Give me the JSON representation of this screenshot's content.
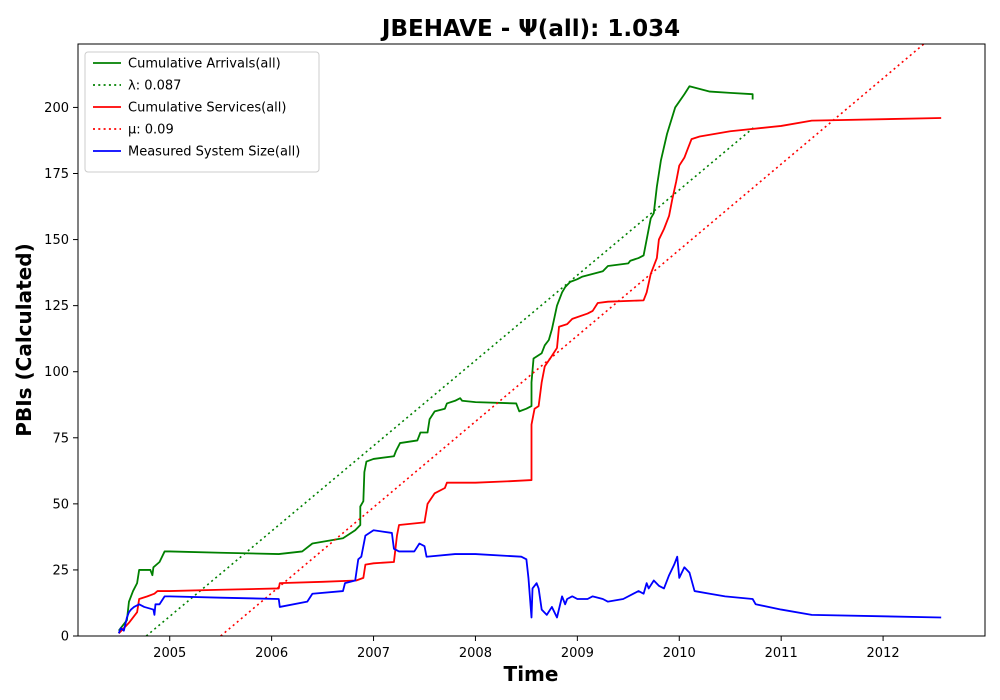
{
  "chart_data": {
    "type": "line",
    "title": "JBEHAVE -  Ψ(all): 1.034",
    "xlabel": "Time",
    "ylabel": "PBIs (Calculated)",
    "xlim": [
      2004.1,
      2013.0
    ],
    "ylim": [
      0,
      224
    ],
    "x_ticks": [
      2005,
      2006,
      2007,
      2008,
      2009,
      2010,
      2011,
      2012
    ],
    "y_ticks": [
      0,
      25,
      50,
      75,
      100,
      125,
      150,
      175,
      200
    ],
    "grid": false,
    "legend_position": "upper-left",
    "series": [
      {
        "name": "Cumulative Arrivals(all)",
        "color": "#008000",
        "style": "solid",
        "points": [
          [
            2004.5,
            2
          ],
          [
            2004.58,
            6
          ],
          [
            2004.6,
            13
          ],
          [
            2004.64,
            17
          ],
          [
            2004.68,
            20
          ],
          [
            2004.7,
            25
          ],
          [
            2004.81,
            25
          ],
          [
            2004.83,
            23
          ],
          [
            2004.84,
            26
          ],
          [
            2004.9,
            28
          ],
          [
            2004.95,
            32
          ],
          [
            2005.0,
            32
          ],
          [
            2005.5,
            31.5
          ],
          [
            2006.07,
            31
          ],
          [
            2006.3,
            32
          ],
          [
            2006.4,
            35
          ],
          [
            2006.7,
            37
          ],
          [
            2006.82,
            40
          ],
          [
            2006.87,
            42
          ],
          [
            2006.87,
            49
          ],
          [
            2006.9,
            51
          ],
          [
            2006.91,
            62
          ],
          [
            2006.93,
            66
          ],
          [
            2007.0,
            67
          ],
          [
            2007.2,
            68
          ],
          [
            2007.22,
            70
          ],
          [
            2007.26,
            73
          ],
          [
            2007.43,
            74
          ],
          [
            2007.46,
            77
          ],
          [
            2007.53,
            77
          ],
          [
            2007.55,
            82
          ],
          [
            2007.6,
            85
          ],
          [
            2007.7,
            86
          ],
          [
            2007.72,
            88
          ],
          [
            2007.8,
            89
          ],
          [
            2007.85,
            90
          ],
          [
            2007.87,
            89
          ],
          [
            2008.0,
            88.5
          ],
          [
            2008.4,
            88
          ],
          [
            2008.43,
            85
          ],
          [
            2008.5,
            86
          ],
          [
            2008.55,
            87
          ],
          [
            2008.55,
            96
          ],
          [
            2008.57,
            105
          ],
          [
            2008.65,
            107
          ],
          [
            2008.68,
            110
          ],
          [
            2008.72,
            112
          ],
          [
            2008.75,
            116
          ],
          [
            2008.8,
            125
          ],
          [
            2008.85,
            130
          ],
          [
            2008.88,
            132
          ],
          [
            2008.93,
            134
          ],
          [
            2009.0,
            135
          ],
          [
            2009.05,
            136
          ],
          [
            2009.25,
            138
          ],
          [
            2009.3,
            140
          ],
          [
            2009.5,
            141
          ],
          [
            2009.52,
            142
          ],
          [
            2009.6,
            143
          ],
          [
            2009.65,
            144
          ],
          [
            2009.68,
            150
          ],
          [
            2009.72,
            158
          ],
          [
            2009.75,
            160
          ],
          [
            2009.78,
            170
          ],
          [
            2009.82,
            180
          ],
          [
            2009.88,
            190
          ],
          [
            2009.92,
            195
          ],
          [
            2009.96,
            200
          ],
          [
            2010.05,
            205
          ],
          [
            2010.1,
            208
          ],
          [
            2010.3,
            206
          ],
          [
            2010.5,
            205.5
          ],
          [
            2010.72,
            205
          ],
          [
            2010.72,
            203
          ]
        ]
      },
      {
        "name": "λ: 0.087",
        "color": "#008000",
        "style": "dotted",
        "points": [
          [
            2004.77,
            0
          ],
          [
            2010.75,
            193
          ]
        ]
      },
      {
        "name": "Cumulative Services(all)",
        "color": "#ff0000",
        "style": "solid",
        "points": [
          [
            2004.5,
            1
          ],
          [
            2004.6,
            5
          ],
          [
            2004.68,
            9
          ],
          [
            2004.7,
            14
          ],
          [
            2004.78,
            15
          ],
          [
            2004.85,
            16
          ],
          [
            2004.88,
            17
          ],
          [
            2005.0,
            17
          ],
          [
            2005.5,
            17.5
          ],
          [
            2006.07,
            18
          ],
          [
            2006.08,
            20
          ],
          [
            2006.5,
            20.5
          ],
          [
            2006.83,
            21
          ],
          [
            2006.9,
            22
          ],
          [
            2006.92,
            27
          ],
          [
            2007.0,
            27.5
          ],
          [
            2007.2,
            28
          ],
          [
            2007.23,
            38
          ],
          [
            2007.25,
            42
          ],
          [
            2007.5,
            43
          ],
          [
            2007.53,
            50
          ],
          [
            2007.6,
            54
          ],
          [
            2007.7,
            56
          ],
          [
            2007.72,
            58
          ],
          [
            2008.0,
            58
          ],
          [
            2008.3,
            58.5
          ],
          [
            2008.55,
            59
          ],
          [
            2008.55,
            80
          ],
          [
            2008.58,
            86
          ],
          [
            2008.62,
            87
          ],
          [
            2008.65,
            96
          ],
          [
            2008.68,
            102
          ],
          [
            2008.75,
            106
          ],
          [
            2008.8,
            109
          ],
          [
            2008.82,
            117
          ],
          [
            2008.9,
            118
          ],
          [
            2008.95,
            120
          ],
          [
            2009.1,
            122
          ],
          [
            2009.15,
            123
          ],
          [
            2009.2,
            126
          ],
          [
            2009.3,
            126.5
          ],
          [
            2009.65,
            127
          ],
          [
            2009.68,
            130
          ],
          [
            2009.72,
            137
          ],
          [
            2009.78,
            143
          ],
          [
            2009.8,
            150
          ],
          [
            2009.85,
            154
          ],
          [
            2009.9,
            159
          ],
          [
            2009.93,
            165
          ],
          [
            2009.97,
            172
          ],
          [
            2010.0,
            178
          ],
          [
            2010.05,
            181
          ],
          [
            2010.08,
            184
          ],
          [
            2010.12,
            188
          ],
          [
            2010.2,
            189
          ],
          [
            2010.5,
            191
          ],
          [
            2011.0,
            193
          ],
          [
            2011.3,
            195
          ],
          [
            2012.57,
            196
          ]
        ]
      },
      {
        "name": "μ: 0.09",
        "color": "#ff0000",
        "style": "dotted",
        "points": [
          [
            2005.5,
            0
          ],
          [
            2012.4,
            224
          ]
        ]
      },
      {
        "name": "Measured System Size(all)",
        "color": "#0000ff",
        "style": "solid",
        "points": [
          [
            2004.5,
            1
          ],
          [
            2004.52,
            3
          ],
          [
            2004.55,
            2
          ],
          [
            2004.58,
            7
          ],
          [
            2004.6,
            9
          ],
          [
            2004.62,
            10
          ],
          [
            2004.65,
            11
          ],
          [
            2004.7,
            12
          ],
          [
            2004.75,
            11
          ],
          [
            2004.84,
            10
          ],
          [
            2004.85,
            8
          ],
          [
            2004.86,
            12
          ],
          [
            2004.9,
            12
          ],
          [
            2004.95,
            15
          ],
          [
            2005.0,
            15
          ],
          [
            2005.5,
            14.5
          ],
          [
            2006.07,
            14
          ],
          [
            2006.08,
            11
          ],
          [
            2006.35,
            13
          ],
          [
            2006.4,
            16
          ],
          [
            2006.7,
            17
          ],
          [
            2006.72,
            20
          ],
          [
            2006.82,
            21
          ],
          [
            2006.85,
            29
          ],
          [
            2006.88,
            30
          ],
          [
            2006.92,
            38
          ],
          [
            2007.0,
            40
          ],
          [
            2007.18,
            39
          ],
          [
            2007.2,
            33
          ],
          [
            2007.25,
            32
          ],
          [
            2007.4,
            32
          ],
          [
            2007.45,
            35
          ],
          [
            2007.5,
            34
          ],
          [
            2007.52,
            30
          ],
          [
            2007.8,
            31
          ],
          [
            2008.0,
            31
          ],
          [
            2008.45,
            30
          ],
          [
            2008.5,
            29
          ],
          [
            2008.52,
            22
          ],
          [
            2008.55,
            7
          ],
          [
            2008.56,
            18
          ],
          [
            2008.6,
            20
          ],
          [
            2008.62,
            18
          ],
          [
            2008.65,
            10
          ],
          [
            2008.7,
            8
          ],
          [
            2008.75,
            11
          ],
          [
            2008.8,
            7
          ],
          [
            2008.85,
            15
          ],
          [
            2008.88,
            12
          ],
          [
            2008.9,
            14
          ],
          [
            2008.95,
            15
          ],
          [
            2009.0,
            14
          ],
          [
            2009.1,
            14
          ],
          [
            2009.15,
            15
          ],
          [
            2009.25,
            14
          ],
          [
            2009.3,
            13
          ],
          [
            2009.45,
            14
          ],
          [
            2009.55,
            16
          ],
          [
            2009.6,
            17
          ],
          [
            2009.65,
            16
          ],
          [
            2009.68,
            20
          ],
          [
            2009.7,
            18
          ],
          [
            2009.75,
            21
          ],
          [
            2009.8,
            19
          ],
          [
            2009.85,
            18
          ],
          [
            2009.9,
            23
          ],
          [
            2009.95,
            27
          ],
          [
            2009.98,
            30
          ],
          [
            2010.0,
            22
          ],
          [
            2010.05,
            26
          ],
          [
            2010.1,
            24
          ],
          [
            2010.15,
            17
          ],
          [
            2010.3,
            16
          ],
          [
            2010.45,
            15
          ],
          [
            2010.72,
            14
          ],
          [
            2010.75,
            12
          ],
          [
            2011.0,
            10
          ],
          [
            2011.3,
            8
          ],
          [
            2012.57,
            7
          ]
        ]
      }
    ]
  }
}
